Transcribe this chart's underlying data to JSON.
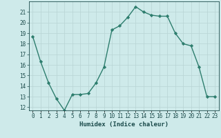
{
  "x": [
    0,
    1,
    2,
    3,
    4,
    5,
    6,
    7,
    8,
    9,
    10,
    11,
    12,
    13,
    14,
    15,
    16,
    17,
    18,
    19,
    20,
    21,
    22,
    23
  ],
  "y": [
    18.7,
    16.3,
    14.3,
    12.8,
    11.7,
    13.2,
    13.2,
    13.3,
    14.3,
    15.8,
    19.3,
    19.7,
    20.5,
    21.5,
    21.0,
    20.7,
    20.6,
    20.6,
    19.0,
    18.0,
    17.8,
    15.8,
    13.0,
    13.0
  ],
  "xlabel": "Humidex (Indice chaleur)",
  "ylim": [
    11.7,
    22.0
  ],
  "xlim": [
    -0.5,
    23.5
  ],
  "yticks": [
    12,
    13,
    14,
    15,
    16,
    17,
    18,
    19,
    20,
    21
  ],
  "xtick_labels": [
    "0",
    "1",
    "2",
    "3",
    "4",
    "5",
    "6",
    "7",
    "8",
    "9",
    "10",
    "11",
    "12",
    "13",
    "14",
    "15",
    "16",
    "17",
    "18",
    "19",
    "20",
    "21",
    "22",
    "23"
  ],
  "line_color": "#2d7d6d",
  "marker": "D",
  "marker_size": 2.2,
  "bg_color": "#ceeaea",
  "grid_color": "#b8d4d4",
  "font_color": "#1a4a4a",
  "tick_font_size": 5.5,
  "xlabel_font_size": 6.5,
  "line_width": 1.0
}
